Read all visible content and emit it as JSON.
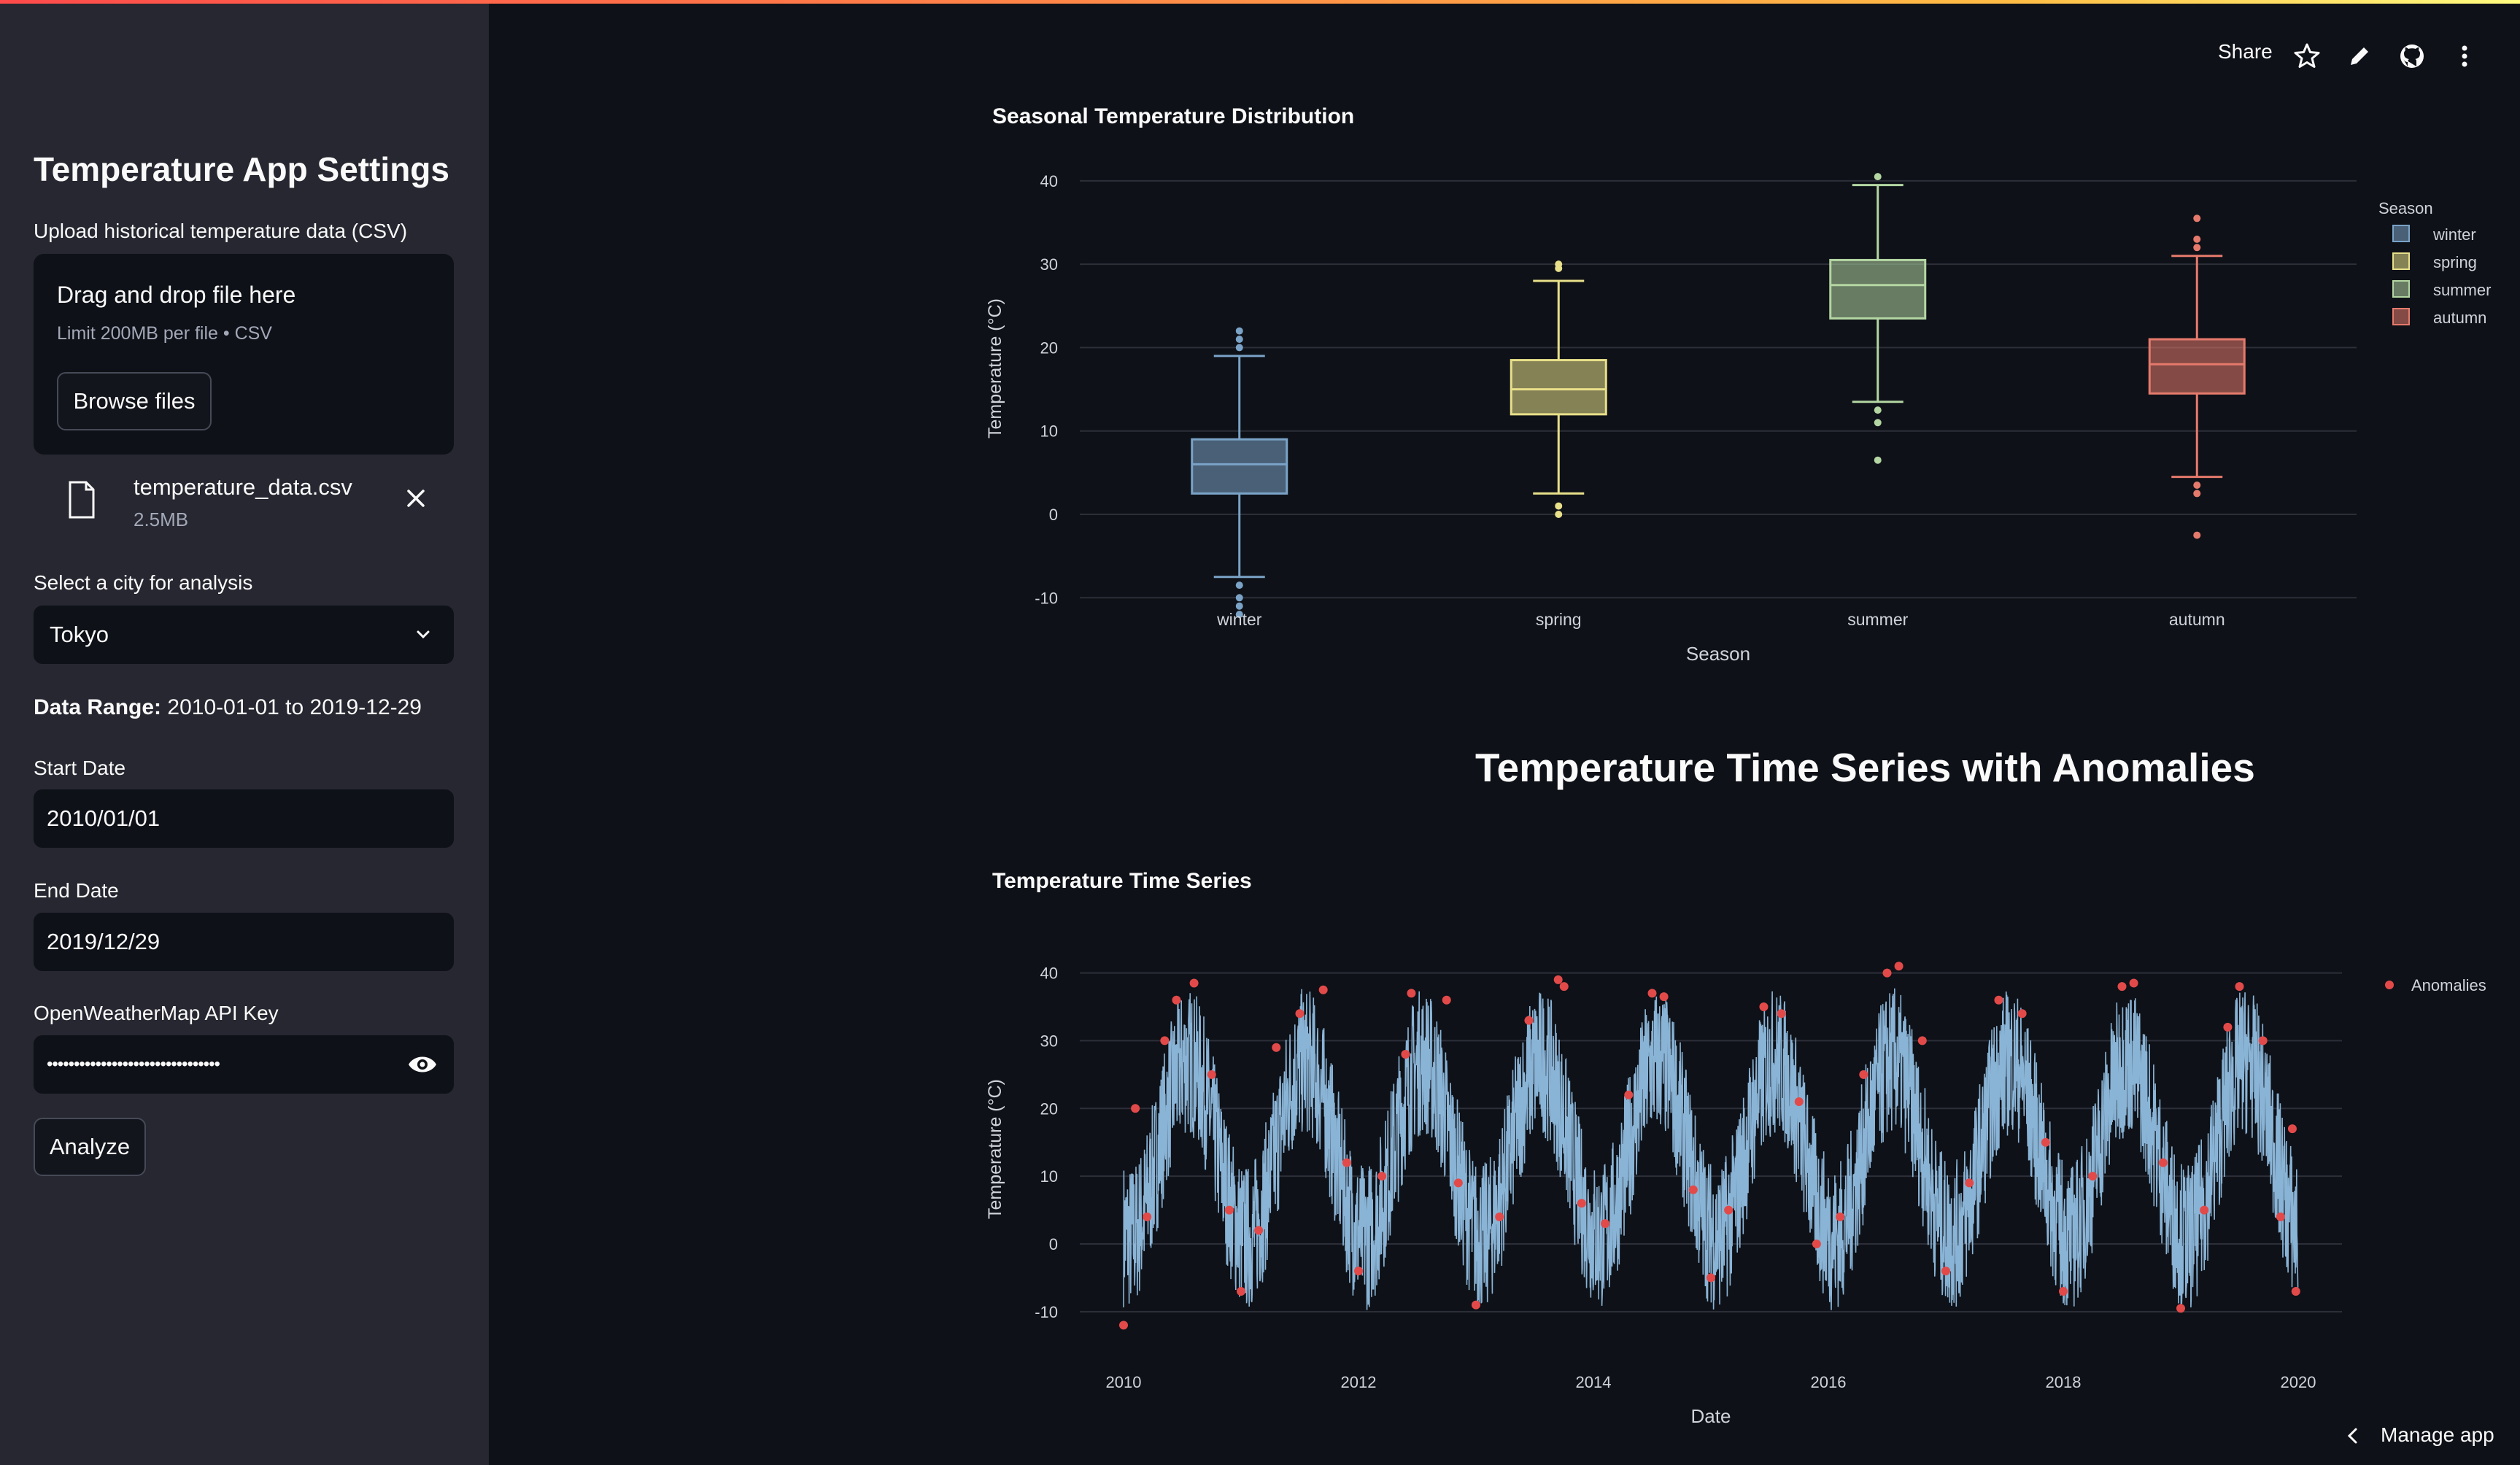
{
  "sidebar": {
    "title": "Temperature App Settings",
    "upload_label": "Upload historical temperature data (CSV)",
    "dropzone_title": "Drag and drop file here",
    "dropzone_sub": "Limit 200MB per file • CSV",
    "browse_label": "Browse files",
    "file_name": "temperature_data.csv",
    "file_size": "2.5MB",
    "city_label": "Select a city for analysis",
    "city_value": "Tokyo",
    "range_label": "Data Range:",
    "range_value": "2010-01-01 to 2019-12-29",
    "start_label": "Start Date",
    "start_value": "2010/01/01",
    "end_label": "End Date",
    "end_value": "2019/12/29",
    "api_label": "OpenWeatherMap API Key",
    "api_value": "••••••••••••••••••••••••••••••••",
    "analyze_label": "Analyze"
  },
  "toolbar": {
    "share_label": "Share",
    "icons": [
      "star-icon",
      "pencil-icon",
      "github-icon",
      "more-vertical-icon"
    ]
  },
  "main": {
    "section_title": "Temperature Time Series with Anomalies",
    "manage_label": "Manage app"
  },
  "colors": {
    "winter": "#7aa3c7",
    "spring": "#e8e08a",
    "summer": "#b3d6a2",
    "autumn": "#e57a6c",
    "series": "#8ab4d6",
    "anomaly": "#e24a4a",
    "accent": "#ff4b4b"
  },
  "chart_data": [
    {
      "type": "box",
      "title": "Seasonal Temperature Distribution",
      "xlabel": "Season",
      "ylabel": "Temperature (°C)",
      "ylim": [
        -14,
        42
      ],
      "yticks": [
        -10,
        0,
        10,
        20,
        30,
        40
      ],
      "legend_title": "Season",
      "legend_position": "top-right",
      "categories": [
        "winter",
        "spring",
        "summer",
        "autumn"
      ],
      "boxes": [
        {
          "name": "winter",
          "min": -7.5,
          "q1": 2.5,
          "median": 6,
          "q3": 9,
          "max": 19,
          "outliers": [
            20,
            21,
            22,
            -8.5,
            -10,
            -11,
            -12
          ]
        },
        {
          "name": "spring",
          "min": 2.5,
          "q1": 12,
          "median": 15,
          "q3": 18.5,
          "max": 28,
          "outliers": [
            29.5,
            30,
            1,
            0
          ]
        },
        {
          "name": "summer",
          "min": 13.5,
          "q1": 23.5,
          "median": 27.5,
          "q3": 30.5,
          "max": 39.5,
          "outliers": [
            40.5,
            12.5,
            11,
            6.5
          ]
        },
        {
          "name": "autumn",
          "min": 4.5,
          "q1": 14.5,
          "median": 18,
          "q3": 21,
          "max": 31,
          "outliers": [
            35.5,
            33,
            32,
            3.5,
            2.5,
            -2.5
          ]
        }
      ]
    },
    {
      "type": "line",
      "title": "Temperature Time Series",
      "xlabel": "Date",
      "ylabel": "Temperature (°C)",
      "ylim": [
        -14,
        42
      ],
      "yticks": [
        -10,
        0,
        10,
        20,
        30,
        40
      ],
      "xticks": [
        "2010",
        "2012",
        "2014",
        "2016",
        "2018",
        "2020"
      ],
      "x_range": [
        2010,
        2020
      ],
      "legend_position": "top-right",
      "series": [
        {
          "values_description": "daily temperatures 2010-2019, seasonal cycle ~ -10..40"
        }
      ],
      "anomalies_name": "Anomalies",
      "anomalies": [
        [
          2010.0,
          -12
        ],
        [
          2010.1,
          20
        ],
        [
          2010.2,
          4
        ],
        [
          2010.35,
          30
        ],
        [
          2010.45,
          36
        ],
        [
          2010.6,
          38.5
        ],
        [
          2010.75,
          25
        ],
        [
          2010.9,
          5
        ],
        [
          2011.0,
          -7
        ],
        [
          2011.15,
          2
        ],
        [
          2011.3,
          29
        ],
        [
          2011.5,
          34
        ],
        [
          2011.7,
          37.5
        ],
        [
          2011.9,
          12
        ],
        [
          2012.0,
          -4
        ],
        [
          2012.2,
          10
        ],
        [
          2012.4,
          28
        ],
        [
          2012.45,
          37
        ],
        [
          2012.75,
          36
        ],
        [
          2012.85,
          9
        ],
        [
          2013.0,
          -9
        ],
        [
          2013.2,
          4
        ],
        [
          2013.45,
          33
        ],
        [
          2013.7,
          39
        ],
        [
          2013.75,
          38
        ],
        [
          2013.9,
          6
        ],
        [
          2014.1,
          3
        ],
        [
          2014.3,
          22
        ],
        [
          2014.5,
          37
        ],
        [
          2014.6,
          36.5
        ],
        [
          2014.85,
          8
        ],
        [
          2015.0,
          -5
        ],
        [
          2015.15,
          5
        ],
        [
          2015.45,
          35
        ],
        [
          2015.6,
          34
        ],
        [
          2015.75,
          21
        ],
        [
          2015.9,
          0
        ],
        [
          2016.1,
          4
        ],
        [
          2016.3,
          25
        ],
        [
          2016.5,
          40
        ],
        [
          2016.6,
          41
        ],
        [
          2016.8,
          30
        ],
        [
          2017.0,
          -4
        ],
        [
          2017.2,
          9
        ],
        [
          2017.45,
          36
        ],
        [
          2017.65,
          34
        ],
        [
          2017.85,
          15
        ],
        [
          2018.0,
          -7
        ],
        [
          2018.25,
          10
        ],
        [
          2018.5,
          38
        ],
        [
          2018.6,
          38.5
        ],
        [
          2018.85,
          12
        ],
        [
          2019.0,
          -9.5
        ],
        [
          2019.2,
          5
        ],
        [
          2019.4,
          32
        ],
        [
          2019.5,
          38
        ],
        [
          2019.7,
          30
        ],
        [
          2019.85,
          4
        ],
        [
          2019.95,
          17
        ],
        [
          2019.98,
          -7
        ]
      ]
    }
  ]
}
